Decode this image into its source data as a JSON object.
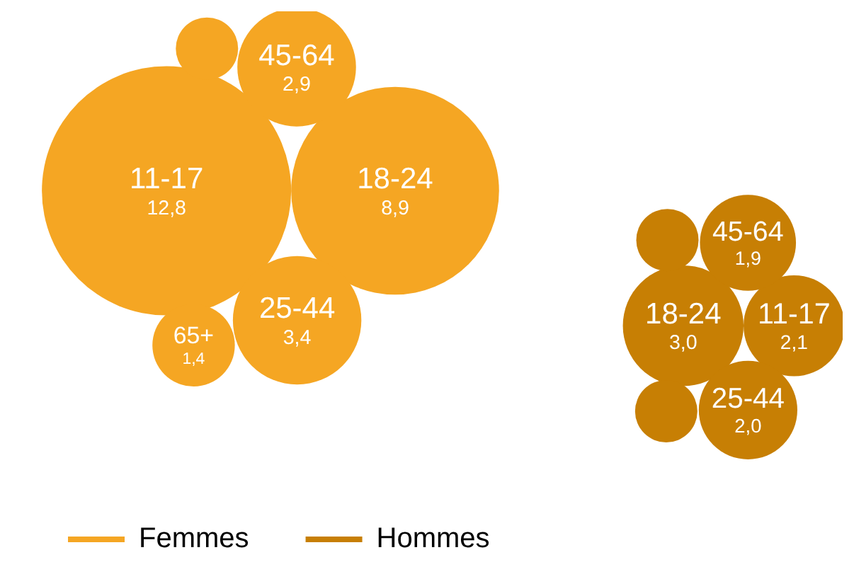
{
  "chart_data": {
    "type": "other",
    "categories": [
      "11-17",
      "18-24",
      "25-44",
      "45-64",
      "65+",
      null,
      null
    ],
    "series": [
      {
        "name": "Femmes",
        "color": "#f5a623",
        "values": [
          12.8,
          8.9,
          3.4,
          2.9,
          1.4,
          null,
          null
        ],
        "value_labels": [
          "12,8",
          "8,9",
          "3,4",
          "2,9",
          "1,4",
          null,
          null
        ]
      },
      {
        "name": "Hommes",
        "color": "#c77f04",
        "values": [
          2.1,
          3.0,
          2.0,
          1.9,
          null,
          null,
          null
        ],
        "value_labels": [
          "2,1",
          "3,0",
          "2,0",
          "1,9",
          null,
          null,
          null
        ]
      }
    ],
    "legend": "bottom left"
  }
}
